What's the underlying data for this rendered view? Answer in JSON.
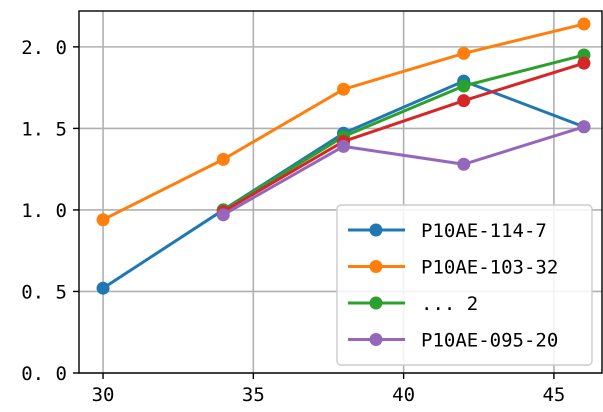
{
  "chart_data": {
    "type": "line",
    "title": "",
    "xlabel": "",
    "ylabel": "",
    "x": [
      30,
      34,
      38,
      42,
      46
    ],
    "xlim": [
      29.2,
      46.6
    ],
    "ylim": [
      0.0,
      2.22
    ],
    "xticks": [
      30,
      35,
      40,
      45
    ],
    "yticks": [
      0.0,
      0.5,
      1.0,
      1.5,
      2.0
    ],
    "xtick_labels": [
      "30",
      "35",
      "40",
      "45"
    ],
    "ytick_labels": [
      "0. 0",
      "0. 5",
      "1. 0",
      "1. 5",
      "2. 0"
    ],
    "grid": true,
    "legend_position": "lower-right",
    "series": [
      {
        "name": "P10AE-114-7",
        "color": "#1f77b4",
        "values": [
          0.52,
          1.0,
          1.47,
          1.79,
          1.51
        ]
      },
      {
        "name": "P10AE-103-32",
        "color": "#ff7f0e",
        "values": [
          0.94,
          1.31,
          1.74,
          1.96,
          2.14
        ]
      },
      {
        "name": "... 2",
        "color": "#2ca02c",
        "values": [
          null,
          1.0,
          1.45,
          1.76,
          1.95
        ]
      },
      {
        "name": "",
        "color": "#d62728",
        "values": [
          null,
          0.99,
          1.42,
          1.67,
          1.9
        ]
      },
      {
        "name": "P10AE-095-20",
        "color": "#9467bd",
        "values": [
          null,
          0.97,
          1.39,
          1.28,
          1.51
        ]
      }
    ]
  }
}
